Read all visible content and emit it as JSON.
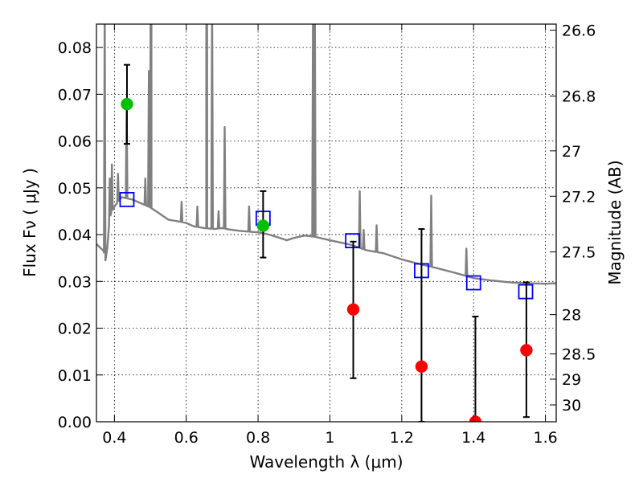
{
  "chart_data": {
    "type": "scatter",
    "xlabel": "Wavelength  λ (μm)",
    "ylabel": "Flux  Fν ( μJy )",
    "ylabel_right": "Magnitude (AB)",
    "xlim": [
      0.35,
      1.63
    ],
    "ylim": [
      0.0,
      0.085
    ],
    "x_ticks": [
      0.4,
      0.6,
      0.8,
      1.0,
      1.2,
      1.4,
      1.6
    ],
    "x_tick_labels": [
      "0.4",
      "0.6",
      "0.8",
      "1",
      "1.2",
      "1.4",
      "1.6"
    ],
    "y_ticks": [
      0.0,
      0.01,
      0.02,
      0.03,
      0.04,
      0.05,
      0.06,
      0.07,
      0.08
    ],
    "y_tick_labels": [
      "0.00",
      "0.01",
      "0.02",
      "0.03",
      "0.04",
      "0.05",
      "0.06",
      "0.07",
      "0.08"
    ],
    "right_ticks": [
      {
        "label": "26.6",
        "flux": 0.0837
      },
      {
        "label": "26.8",
        "flux": 0.0696
      },
      {
        "label": "27",
        "flux": 0.0579
      },
      {
        "label": "27.2",
        "flux": 0.0482
      },
      {
        "label": "27.5",
        "flux": 0.0363
      },
      {
        "label": "28",
        "flux": 0.0229
      },
      {
        "label": "28.5",
        "flux": 0.0145
      },
      {
        "label": "29",
        "flux": 0.0091
      },
      {
        "label": "30",
        "flux": 0.0036
      }
    ],
    "grid": true,
    "colors": {
      "model_spectrum": "#808080",
      "model_photometry": "#0000ff",
      "green_points": "#00c000",
      "red_points": "#ff0000",
      "error_bars": "#000000"
    },
    "model_spectrum": {
      "continuum": [
        [
          0.35,
          0.038
        ],
        [
          0.37,
          0.0365
        ],
        [
          0.375,
          0.0345
        ],
        [
          0.38,
          0.037
        ],
        [
          0.385,
          0.042
        ],
        [
          0.39,
          0.0445
        ],
        [
          0.4,
          0.046
        ],
        [
          0.42,
          0.048
        ],
        [
          0.45,
          0.0475
        ],
        [
          0.48,
          0.0465
        ],
        [
          0.5,
          0.0458
        ],
        [
          0.52,
          0.0448
        ],
        [
          0.55,
          0.0432
        ],
        [
          0.58,
          0.0428
        ],
        [
          0.6,
          0.0425
        ],
        [
          0.62,
          0.0418
        ],
        [
          0.65,
          0.0414
        ],
        [
          0.68,
          0.0412
        ],
        [
          0.7,
          0.0414
        ],
        [
          0.72,
          0.0411
        ],
        [
          0.75,
          0.0408
        ],
        [
          0.78,
          0.0406
        ],
        [
          0.8,
          0.0405
        ],
        [
          0.82,
          0.0402
        ],
        [
          0.84,
          0.0398
        ],
        [
          0.86,
          0.0393
        ],
        [
          0.88,
          0.0388
        ],
        [
          0.9,
          0.0393
        ],
        [
          0.93,
          0.0398
        ],
        [
          0.96,
          0.0395
        ],
        [
          1.0,
          0.0388
        ],
        [
          1.03,
          0.0383
        ],
        [
          1.06,
          0.0378
        ],
        [
          1.1,
          0.0367
        ],
        [
          1.15,
          0.036
        ],
        [
          1.2,
          0.0347
        ],
        [
          1.25,
          0.0337
        ],
        [
          1.3,
          0.0328
        ],
        [
          1.35,
          0.0318
        ],
        [
          1.4,
          0.0307
        ],
        [
          1.45,
          0.0302
        ],
        [
          1.5,
          0.0298
        ],
        [
          1.55,
          0.0296
        ],
        [
          1.6,
          0.0295
        ],
        [
          1.63,
          0.0296
        ]
      ],
      "emission_lines": [
        {
          "x": 0.373,
          "peak": 0.09
        },
        {
          "x": 0.387,
          "peak": 0.052
        },
        {
          "x": 0.393,
          "peak": 0.055
        },
        {
          "x": 0.41,
          "peak": 0.053
        },
        {
          "x": 0.434,
          "peak": 0.068
        },
        {
          "x": 0.486,
          "peak": 0.052
        },
        {
          "x": 0.496,
          "peak": 0.075
        },
        {
          "x": 0.5007,
          "peak": 0.09
        },
        {
          "x": 0.501,
          "peak": 0.09
        },
        {
          "x": 0.503,
          "peak": 0.09
        },
        {
          "x": 0.587,
          "peak": 0.047
        },
        {
          "x": 0.631,
          "peak": 0.046
        },
        {
          "x": 0.656,
          "peak": 0.09
        },
        {
          "x": 0.658,
          "peak": 0.09
        },
        {
          "x": 0.672,
          "peak": 0.09
        },
        {
          "x": 0.69,
          "peak": 0.045
        },
        {
          "x": 0.707,
          "peak": 0.063
        },
        {
          "x": 0.775,
          "peak": 0.046
        },
        {
          "x": 0.953,
          "peak": 0.09
        },
        {
          "x": 0.958,
          "peak": 0.09
        },
        {
          "x": 1.083,
          "peak": 0.0493
        },
        {
          "x": 1.094,
          "peak": 0.041
        },
        {
          "x": 1.13,
          "peak": 0.042
        },
        {
          "x": 1.282,
          "peak": 0.0483
        },
        {
          "x": 1.38,
          "peak": 0.037
        }
      ]
    },
    "model_photometry": {
      "x": [
        0.435,
        0.814,
        1.063,
        1.255,
        1.4,
        1.545
      ],
      "y": [
        0.0475,
        0.0435,
        0.0387,
        0.0323,
        0.0297,
        0.0278
      ]
    },
    "green_points": {
      "x": [
        0.435,
        0.814
      ],
      "y": [
        0.0679,
        0.0419
      ],
      "err_low": [
        0.0594,
        0.0351
      ],
      "err_high": [
        0.0763,
        0.0493
      ]
    },
    "red_points": {
      "x": [
        1.065,
        1.255,
        1.405,
        1.547
      ],
      "y": [
        0.024,
        0.0118,
        0.0,
        0.0153
      ],
      "err_low": [
        0.0093,
        0.0,
        0.0,
        0.001
      ],
      "err_high": [
        0.0385,
        0.0412,
        0.0225,
        0.0298
      ]
    }
  }
}
